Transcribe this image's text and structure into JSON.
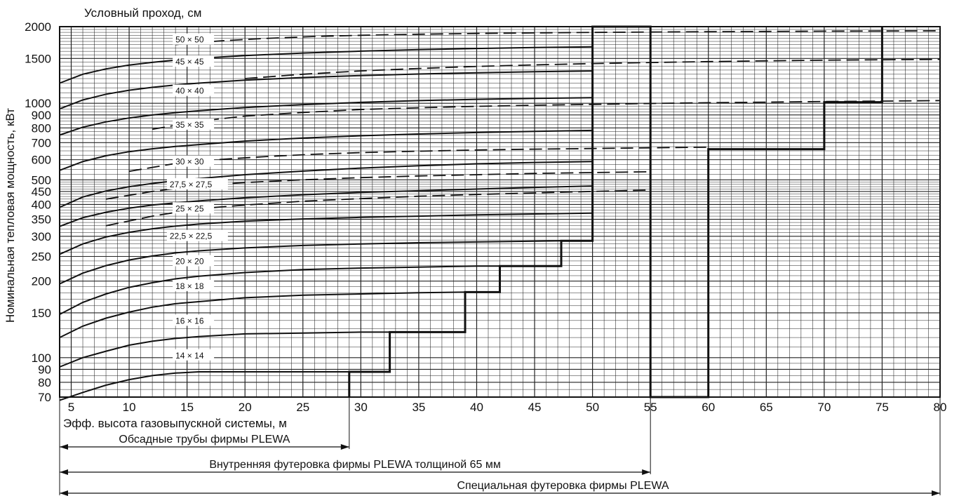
{
  "chart_data": {
    "type": "line",
    "title": "Условный проход, см",
    "xlabel": "Эфф. высота газовыпускной системы, м",
    "ylabel": "Номинальная тепловая мощность, кВт",
    "xlim": [
      4,
      80
    ],
    "ylim": [
      70,
      2000
    ],
    "y_scale": "log",
    "x_ticks": [
      5,
      10,
      15,
      20,
      25,
      30,
      35,
      40,
      45,
      50,
      55,
      60,
      65,
      70,
      75,
      80
    ],
    "y_ticks": [
      70,
      80,
      90,
      100,
      150,
      200,
      250,
      300,
      350,
      400,
      450,
      500,
      600,
      700,
      800,
      900,
      1000,
      1500,
      2000
    ],
    "y_tick_labels": [
      "70",
      "80",
      "90",
      "100",
      "150",
      "200",
      "250",
      "300",
      "350",
      "400",
      "450",
      "500",
      "600",
      "700",
      "800",
      "900",
      "1000",
      "1500",
      "2000"
    ],
    "grid": true,
    "series": [
      {
        "name": "14 × 14",
        "x": [
          4,
          6,
          8,
          10,
          12,
          14,
          16,
          20,
          25,
          29
        ],
        "y": [
          68,
          73,
          78,
          82,
          85,
          87,
          88,
          88,
          88,
          88
        ]
      },
      {
        "name": "16 × 16",
        "x": [
          4,
          6,
          8,
          10,
          12,
          14,
          16,
          20,
          25,
          30,
          32.5
        ],
        "y": [
          92,
          100,
          106,
          112,
          116,
          119,
          121,
          124,
          125,
          126,
          126
        ]
      },
      {
        "name": "18 × 18",
        "x": [
          4,
          6,
          8,
          10,
          12,
          14,
          16,
          20,
          25,
          30,
          35,
          39
        ],
        "y": [
          120,
          133,
          143,
          151,
          158,
          163,
          166,
          172,
          176,
          178,
          180,
          181
        ]
      },
      {
        "name": "20 × 20",
        "x": [
          4,
          6,
          8,
          10,
          12,
          14,
          16,
          20,
          25,
          30,
          35,
          40,
          42
        ],
        "y": [
          148,
          165,
          178,
          189,
          197,
          204,
          209,
          216,
          222,
          225,
          227,
          229,
          229
        ]
      },
      {
        "name": "22,5 × 22,5",
        "x": [
          4,
          6,
          8,
          10,
          12,
          14,
          16,
          20,
          25,
          30,
          35,
          40,
          45,
          47.3
        ],
        "y": [
          195,
          215,
          230,
          242,
          251,
          258,
          263,
          270,
          276,
          280,
          283,
          285,
          287,
          288
        ]
      },
      {
        "name": "25 × 25",
        "x": [
          4,
          6,
          8,
          10,
          12,
          14,
          16,
          20,
          25,
          30,
          35,
          40,
          45,
          50
        ],
        "y": [
          255,
          280,
          298,
          311,
          321,
          329,
          335,
          344,
          351,
          356,
          360,
          364,
          367,
          370
        ]
      },
      {
        "name": "27,5 × 27,5",
        "x": [
          4,
          6,
          8,
          10,
          12,
          14,
          16,
          20,
          25,
          30,
          35,
          40,
          45,
          50
        ],
        "y": [
          328,
          355,
          373,
          387,
          398,
          406,
          413,
          425,
          437,
          446,
          453,
          460,
          467,
          473
        ]
      },
      {
        "name": "30 × 30",
        "x": [
          4,
          6,
          8,
          10,
          12,
          14,
          16,
          20,
          25,
          30,
          35,
          40,
          45,
          50
        ],
        "y": [
          390,
          428,
          452,
          470,
          484,
          496,
          506,
          524,
          541,
          556,
          568,
          578,
          585,
          590
        ]
      },
      {
        "name": "35 × 35",
        "x": [
          4,
          6,
          8,
          10,
          12,
          14,
          16,
          20,
          25,
          30,
          35,
          40,
          45,
          50
        ],
        "y": [
          545,
          590,
          622,
          645,
          662,
          676,
          688,
          710,
          730,
          745,
          757,
          767,
          775,
          782
        ]
      },
      {
        "name": "40 × 40",
        "x": [
          4,
          6,
          8,
          10,
          12,
          14,
          16,
          20,
          25,
          30,
          35,
          40,
          45,
          50
        ],
        "y": [
          750,
          805,
          845,
          875,
          899,
          918,
          934,
          962,
          988,
          1008,
          1024,
          1036,
          1045,
          1052
        ]
      },
      {
        "name": "45 × 45",
        "x": [
          4,
          6,
          8,
          10,
          12,
          14,
          16,
          20,
          25,
          30,
          35,
          40,
          45,
          50
        ],
        "y": [
          950,
          1030,
          1085,
          1125,
          1155,
          1180,
          1200,
          1232,
          1262,
          1285,
          1303,
          1318,
          1330,
          1340
        ]
      },
      {
        "name": "50 × 50",
        "x": [
          4,
          6,
          8,
          10,
          12,
          14,
          16,
          20,
          25,
          30,
          35,
          40,
          45,
          50
        ],
        "y": [
          1200,
          1300,
          1365,
          1412,
          1448,
          1478,
          1502,
          1540,
          1575,
          1602,
          1624,
          1642,
          1656,
          1666
        ]
      }
    ],
    "dashed_series": [
      {
        "x": [
          8,
          12,
          16,
          20,
          25,
          30,
          35,
          40,
          45,
          50,
          55
        ],
        "y": [
          330,
          360,
          385,
          398,
          412,
          422,
          431,
          438,
          444,
          450,
          456
        ]
      },
      {
        "x": [
          8,
          12,
          16,
          20,
          25,
          30,
          35,
          40,
          45,
          50,
          55
        ],
        "y": [
          420,
          450,
          475,
          488,
          500,
          510,
          518,
          524,
          530,
          534,
          538
        ]
      },
      {
        "x": [
          10,
          14,
          18,
          22,
          26,
          30,
          35,
          40,
          45,
          50,
          55,
          60
        ],
        "y": [
          540,
          580,
          602,
          618,
          630,
          640,
          648,
          655,
          660,
          664,
          668,
          672
        ]
      },
      {
        "x": [
          12,
          16,
          20,
          25,
          30,
          35,
          40,
          45,
          50,
          55,
          60,
          65,
          70,
          75,
          80
        ],
        "y": [
          790,
          850,
          890,
          920,
          945,
          960,
          972,
          982,
          990,
          998,
          1005,
          1010,
          1016,
          1020,
          1024
        ]
      },
      {
        "x": [
          20,
          25,
          30,
          35,
          40,
          45,
          50,
          55,
          60,
          65,
          70,
          75,
          80
        ],
        "y": [
          1250,
          1300,
          1340,
          1370,
          1395,
          1415,
          1432,
          1446,
          1458,
          1468,
          1476,
          1482,
          1488
        ]
      },
      {
        "x": [
          14,
          18,
          22,
          26,
          30,
          35,
          40,
          45,
          50,
          55,
          60,
          65,
          70,
          75,
          80
        ],
        "y": [
          1700,
          1760,
          1800,
          1830,
          1850,
          1868,
          1880,
          1890,
          1898,
          1905,
          1911,
          1916,
          1920,
          1923,
          1926
        ]
      }
    ],
    "limit_boundary": {
      "x": [
        29,
        29,
        32.5,
        32.5,
        39,
        39,
        42,
        42,
        47.3,
        47.3,
        50,
        50,
        55,
        55,
        60,
        60,
        70,
        70,
        75,
        75
      ],
      "y": [
        70,
        88,
        88,
        126,
        126,
        181,
        181,
        229,
        229,
        288,
        288,
        2000,
        2000,
        70,
        70,
        660,
        660,
        1010,
        1010,
        2000
      ]
    },
    "ranges": [
      {
        "label": "Обсадные трубы фирмы PLEWA",
        "from": 4,
        "to": 29
      },
      {
        "label": "Внутренняя футеровка фирмы PLEWA толщиной 65 мм",
        "from": 4,
        "to": 55
      },
      {
        "label": "Специальная футеровка фирмы PLEWA",
        "from": 4,
        "to": 80
      }
    ]
  }
}
